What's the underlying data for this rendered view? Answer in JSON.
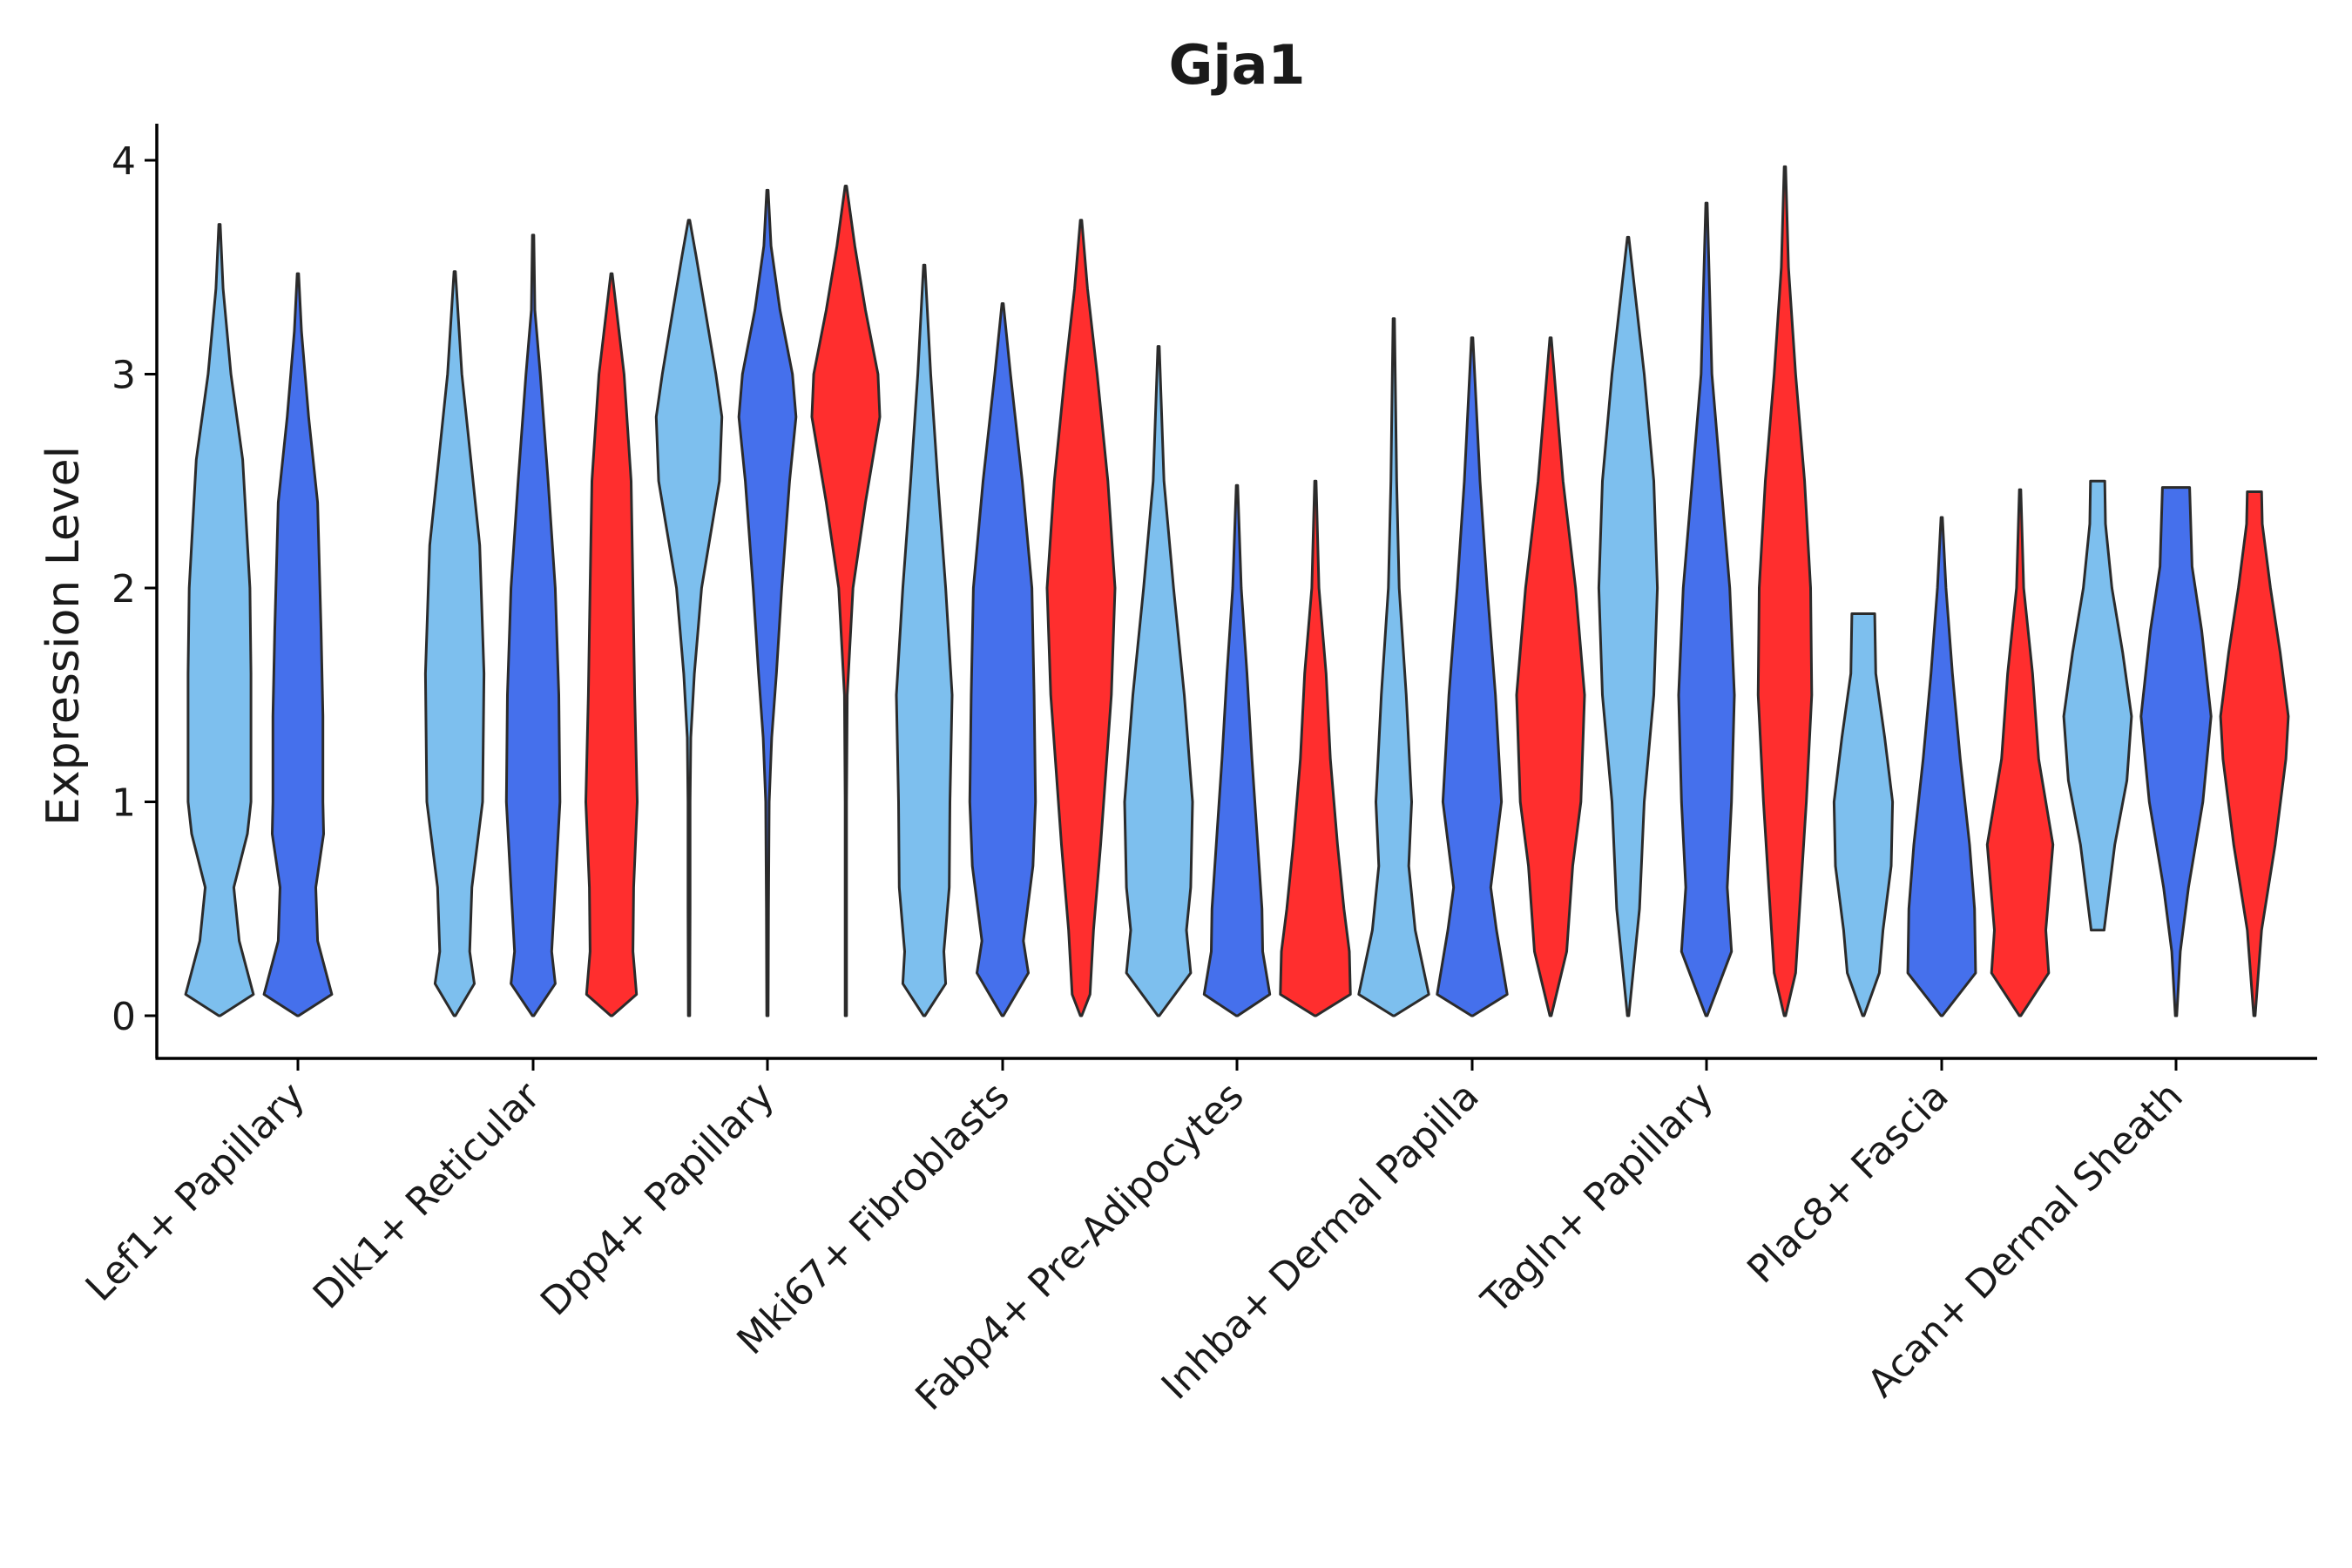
{
  "chart_data": {
    "type": "violin",
    "title": "Gja1",
    "xlabel": "",
    "ylabel": "Expression Level",
    "ylim": [
      -0.2,
      4.18
    ],
    "yticks": [
      0,
      1,
      2,
      3,
      4
    ],
    "grid": false,
    "legend": "none",
    "series_colors": [
      "#7dbfee",
      "#4570ec",
      "#ff2e2e"
    ],
    "categories": [
      "Lef1+ Papillary",
      "Dlk1+ Reticular",
      "Dpp4+ Papillary",
      "Mki67+ Fibroblasts",
      "Fabp4+ Pre-Adipocytes",
      "Inhba+ Dermal Papilla",
      "Tagln+ Papillary",
      "Plac8+ Fascia",
      "Acan+ Dermal Sheath"
    ],
    "violins": [
      {
        "category": "Lef1+ Papillary",
        "series": 0,
        "min": 0,
        "max": 3.7,
        "profile": [
          [
            0,
            0.0
          ],
          [
            0.1,
            0.95
          ],
          [
            0.35,
            0.55
          ],
          [
            0.6,
            0.4
          ],
          [
            0.85,
            0.78
          ],
          [
            1.0,
            0.88
          ],
          [
            1.6,
            0.88
          ],
          [
            2.0,
            0.85
          ],
          [
            2.6,
            0.65
          ],
          [
            3.0,
            0.32
          ],
          [
            3.4,
            0.1
          ],
          [
            3.7,
            0
          ]
        ]
      },
      {
        "category": "Lef1+ Papillary",
        "series": 1,
        "min": 0,
        "max": 3.47,
        "profile": [
          [
            0,
            0.0
          ],
          [
            0.1,
            0.95
          ],
          [
            0.35,
            0.55
          ],
          [
            0.6,
            0.5
          ],
          [
            0.85,
            0.72
          ],
          [
            1.0,
            0.7
          ],
          [
            1.4,
            0.7
          ],
          [
            1.8,
            0.65
          ],
          [
            2.4,
            0.55
          ],
          [
            2.8,
            0.3
          ],
          [
            3.2,
            0.1
          ],
          [
            3.47,
            0
          ]
        ]
      },
      {
        "category": "Dlk1+ Reticular",
        "series": 0,
        "min": 0,
        "max": 3.48,
        "profile": [
          [
            0,
            0.0
          ],
          [
            0.15,
            0.55
          ],
          [
            0.3,
            0.42
          ],
          [
            0.6,
            0.48
          ],
          [
            1.0,
            0.78
          ],
          [
            1.6,
            0.82
          ],
          [
            2.2,
            0.7
          ],
          [
            2.6,
            0.45
          ],
          [
            3.0,
            0.2
          ],
          [
            3.48,
            0
          ]
        ]
      },
      {
        "category": "Dlk1+ Reticular",
        "series": 1,
        "min": 0,
        "max": 3.65,
        "profile": [
          [
            0,
            0.0
          ],
          [
            0.15,
            0.62
          ],
          [
            0.3,
            0.52
          ],
          [
            0.6,
            0.62
          ],
          [
            1.0,
            0.75
          ],
          [
            1.5,
            0.72
          ],
          [
            2.0,
            0.62
          ],
          [
            2.5,
            0.42
          ],
          [
            3.0,
            0.2
          ],
          [
            3.3,
            0.05
          ],
          [
            3.65,
            0
          ]
        ]
      },
      {
        "category": "Dlk1+ Reticular",
        "series": 2,
        "min": 0,
        "max": 3.47,
        "profile": [
          [
            0,
            0.0
          ],
          [
            0.1,
            0.7
          ],
          [
            0.3,
            0.6
          ],
          [
            0.6,
            0.62
          ],
          [
            1.0,
            0.72
          ],
          [
            1.5,
            0.65
          ],
          [
            2.0,
            0.6
          ],
          [
            2.5,
            0.55
          ],
          [
            3.0,
            0.35
          ],
          [
            3.47,
            0
          ]
        ]
      },
      {
        "category": "Dpp4+ Papillary",
        "series": 0,
        "min": 0,
        "max": 3.72,
        "profile": [
          [
            0,
            0.0
          ],
          [
            0.5,
            0.03
          ],
          [
            1.0,
            0.03
          ],
          [
            1.3,
            0.05
          ],
          [
            1.6,
            0.15
          ],
          [
            2.0,
            0.35
          ],
          [
            2.5,
            0.85
          ],
          [
            2.8,
            0.92
          ],
          [
            3.0,
            0.75
          ],
          [
            3.3,
            0.45
          ],
          [
            3.55,
            0.2
          ],
          [
            3.72,
            0
          ]
        ]
      },
      {
        "category": "Dpp4+ Papillary",
        "series": 1,
        "min": 0,
        "max": 3.86,
        "profile": [
          [
            0,
            0.0
          ],
          [
            0.5,
            0.03
          ],
          [
            1.0,
            0.05
          ],
          [
            1.3,
            0.12
          ],
          [
            1.6,
            0.25
          ],
          [
            2.0,
            0.4
          ],
          [
            2.5,
            0.62
          ],
          [
            2.8,
            0.8
          ],
          [
            3.0,
            0.7
          ],
          [
            3.3,
            0.35
          ],
          [
            3.6,
            0.1
          ],
          [
            3.86,
            0
          ]
        ]
      },
      {
        "category": "Dpp4+ Papillary",
        "series": 2,
        "min": 0,
        "max": 3.88,
        "profile": [
          [
            0,
            0.0
          ],
          [
            0.5,
            0.02
          ],
          [
            1.0,
            0.02
          ],
          [
            1.5,
            0.04
          ],
          [
            2.0,
            0.2
          ],
          [
            2.4,
            0.55
          ],
          [
            2.8,
            0.95
          ],
          [
            3.0,
            0.9
          ],
          [
            3.3,
            0.55
          ],
          [
            3.6,
            0.25
          ],
          [
            3.88,
            0
          ]
        ]
      },
      {
        "category": "Mki67+ Fibroblasts",
        "series": 0,
        "min": 0,
        "max": 3.51,
        "profile": [
          [
            0,
            0.0
          ],
          [
            0.15,
            0.6
          ],
          [
            0.3,
            0.55
          ],
          [
            0.6,
            0.7
          ],
          [
            1.0,
            0.72
          ],
          [
            1.5,
            0.78
          ],
          [
            2.0,
            0.6
          ],
          [
            2.5,
            0.38
          ],
          [
            3.0,
            0.18
          ],
          [
            3.51,
            0
          ]
        ]
      },
      {
        "category": "Mki67+ Fibroblasts",
        "series": 1,
        "min": 0,
        "max": 3.33,
        "profile": [
          [
            0,
            0.0
          ],
          [
            0.2,
            0.72
          ],
          [
            0.35,
            0.58
          ],
          [
            0.7,
            0.85
          ],
          [
            1.0,
            0.92
          ],
          [
            1.5,
            0.88
          ],
          [
            2.0,
            0.82
          ],
          [
            2.5,
            0.55
          ],
          [
            3.0,
            0.22
          ],
          [
            3.33,
            0
          ]
        ]
      },
      {
        "category": "Mki67+ Fibroblasts",
        "series": 2,
        "min": 0,
        "max": 3.72,
        "profile": [
          [
            0,
            0.0
          ],
          [
            0.1,
            0.25
          ],
          [
            0.4,
            0.35
          ],
          [
            0.8,
            0.55
          ],
          [
            1.5,
            0.85
          ],
          [
            2.0,
            0.95
          ],
          [
            2.5,
            0.75
          ],
          [
            3.0,
            0.45
          ],
          [
            3.4,
            0.18
          ],
          [
            3.72,
            0
          ]
        ]
      },
      {
        "category": "Fabp4+ Pre-Adipocytes",
        "series": 0,
        "min": 0,
        "max": 3.13,
        "profile": [
          [
            0,
            0.0
          ],
          [
            0.2,
            0.9
          ],
          [
            0.4,
            0.78
          ],
          [
            0.6,
            0.9
          ],
          [
            1.0,
            0.95
          ],
          [
            1.5,
            0.72
          ],
          [
            2.0,
            0.42
          ],
          [
            2.5,
            0.15
          ],
          [
            3.13,
            0
          ]
        ]
      },
      {
        "category": "Fabp4+ Pre-Adipocytes",
        "series": 1,
        "min": 0,
        "max": 2.48,
        "profile": [
          [
            0,
            0.0
          ],
          [
            0.1,
            0.92
          ],
          [
            0.3,
            0.72
          ],
          [
            0.5,
            0.7
          ],
          [
            0.8,
            0.58
          ],
          [
            1.2,
            0.42
          ],
          [
            1.6,
            0.28
          ],
          [
            2.0,
            0.12
          ],
          [
            2.48,
            0
          ]
        ]
      },
      {
        "category": "Fabp4+ Pre-Adipocytes",
        "series": 2,
        "min": 0,
        "max": 2.5,
        "profile": [
          [
            0,
            0.0
          ],
          [
            0.1,
            0.98
          ],
          [
            0.3,
            0.95
          ],
          [
            0.5,
            0.8
          ],
          [
            0.8,
            0.62
          ],
          [
            1.2,
            0.42
          ],
          [
            1.6,
            0.3
          ],
          [
            2.0,
            0.1
          ],
          [
            2.5,
            0
          ]
        ]
      },
      {
        "category": "Inhba+ Dermal Papilla",
        "series": 0,
        "min": 0,
        "max": 3.26,
        "profile": [
          [
            0,
            0.0
          ],
          [
            0.1,
            0.98
          ],
          [
            0.4,
            0.6
          ],
          [
            0.7,
            0.42
          ],
          [
            1.0,
            0.5
          ],
          [
            1.5,
            0.35
          ],
          [
            2.0,
            0.15
          ],
          [
            2.5,
            0.08
          ],
          [
            3.26,
            0
          ]
        ]
      },
      {
        "category": "Inhba+ Dermal Papilla",
        "series": 1,
        "min": 0,
        "max": 3.17,
        "profile": [
          [
            0,
            0.0
          ],
          [
            0.1,
            0.98
          ],
          [
            0.4,
            0.68
          ],
          [
            0.6,
            0.52
          ],
          [
            1.0,
            0.82
          ],
          [
            1.5,
            0.65
          ],
          [
            2.0,
            0.42
          ],
          [
            2.5,
            0.22
          ],
          [
            3.17,
            0
          ]
        ]
      },
      {
        "category": "Inhba+ Dermal Papilla",
        "series": 2,
        "min": 0,
        "max": 3.17,
        "profile": [
          [
            0,
            0.0
          ],
          [
            0.3,
            0.45
          ],
          [
            0.7,
            0.62
          ],
          [
            1.0,
            0.85
          ],
          [
            1.5,
            0.95
          ],
          [
            2.0,
            0.7
          ],
          [
            2.5,
            0.35
          ],
          [
            3.17,
            0
          ]
        ]
      },
      {
        "category": "Tagln+ Papillary",
        "series": 0,
        "min": 0,
        "max": 3.64,
        "profile": [
          [
            0,
            0.0
          ],
          [
            0.5,
            0.32
          ],
          [
            1.0,
            0.45
          ],
          [
            1.5,
            0.72
          ],
          [
            2.0,
            0.82
          ],
          [
            2.5,
            0.72
          ],
          [
            3.0,
            0.45
          ],
          [
            3.64,
            0
          ]
        ]
      },
      {
        "category": "Tagln+ Papillary",
        "series": 1,
        "min": 0,
        "max": 3.8,
        "profile": [
          [
            0,
            0.0
          ],
          [
            0.3,
            0.7
          ],
          [
            0.6,
            0.58
          ],
          [
            1.0,
            0.7
          ],
          [
            1.5,
            0.78
          ],
          [
            2.0,
            0.65
          ],
          [
            2.5,
            0.4
          ],
          [
            3.0,
            0.15
          ],
          [
            3.8,
            0
          ]
        ]
      },
      {
        "category": "Tagln+ Papillary",
        "series": 2,
        "min": 0,
        "max": 3.97,
        "profile": [
          [
            0,
            0.0
          ],
          [
            0.2,
            0.3
          ],
          [
            0.6,
            0.45
          ],
          [
            1.0,
            0.6
          ],
          [
            1.5,
            0.75
          ],
          [
            2.0,
            0.72
          ],
          [
            2.5,
            0.55
          ],
          [
            3.0,
            0.3
          ],
          [
            3.5,
            0.1
          ],
          [
            3.97,
            0
          ]
        ]
      },
      {
        "category": "Plac8+ Fascia",
        "series": 0,
        "min": 0,
        "max": 1.88,
        "profile": [
          [
            0,
            0.0
          ],
          [
            0.2,
            0.45
          ],
          [
            0.4,
            0.55
          ],
          [
            0.7,
            0.78
          ],
          [
            1.0,
            0.82
          ],
          [
            1.3,
            0.6
          ],
          [
            1.6,
            0.35
          ],
          [
            1.88,
            0.32
          ]
        ]
      },
      {
        "category": "Plac8+ Fascia",
        "series": 1,
        "min": 0,
        "max": 2.33,
        "profile": [
          [
            0,
            0.0
          ],
          [
            0.2,
            0.95
          ],
          [
            0.5,
            0.92
          ],
          [
            0.8,
            0.78
          ],
          [
            1.2,
            0.52
          ],
          [
            1.6,
            0.3
          ],
          [
            2.0,
            0.12
          ],
          [
            2.33,
            0
          ]
        ]
      },
      {
        "category": "Plac8+ Fascia",
        "series": 2,
        "min": 0,
        "max": 2.46,
        "profile": [
          [
            0,
            0.0
          ],
          [
            0.2,
            0.8
          ],
          [
            0.4,
            0.72
          ],
          [
            0.8,
            0.92
          ],
          [
            1.2,
            0.52
          ],
          [
            1.6,
            0.35
          ],
          [
            2.0,
            0.1
          ],
          [
            2.46,
            0
          ]
        ]
      },
      {
        "category": "Acan+ Dermal Sheath",
        "series": 0,
        "min": 0.4,
        "max": 2.5,
        "profile": [
          [
            0.4,
            0.18
          ],
          [
            0.8,
            0.48
          ],
          [
            1.1,
            0.82
          ],
          [
            1.4,
            0.95
          ],
          [
            1.7,
            0.7
          ],
          [
            2.0,
            0.4
          ],
          [
            2.3,
            0.22
          ],
          [
            2.5,
            0.2
          ]
        ]
      },
      {
        "category": "Acan+ Dermal Sheath",
        "series": 1,
        "min": 0,
        "max": 2.47,
        "profile": [
          [
            0,
            0.0
          ],
          [
            0.3,
            0.12
          ],
          [
            0.6,
            0.35
          ],
          [
            1.0,
            0.75
          ],
          [
            1.4,
            0.98
          ],
          [
            1.8,
            0.72
          ],
          [
            2.1,
            0.45
          ],
          [
            2.47,
            0.38
          ]
        ]
      },
      {
        "category": "Acan+ Dermal Sheath",
        "series": 2,
        "min": 0,
        "max": 2.45,
        "profile": [
          [
            0,
            0.0
          ],
          [
            0.4,
            0.2
          ],
          [
            0.8,
            0.58
          ],
          [
            1.2,
            0.88
          ],
          [
            1.4,
            0.95
          ],
          [
            1.7,
            0.72
          ],
          [
            2.0,
            0.45
          ],
          [
            2.3,
            0.22
          ],
          [
            2.45,
            0.2
          ]
        ]
      }
    ]
  }
}
